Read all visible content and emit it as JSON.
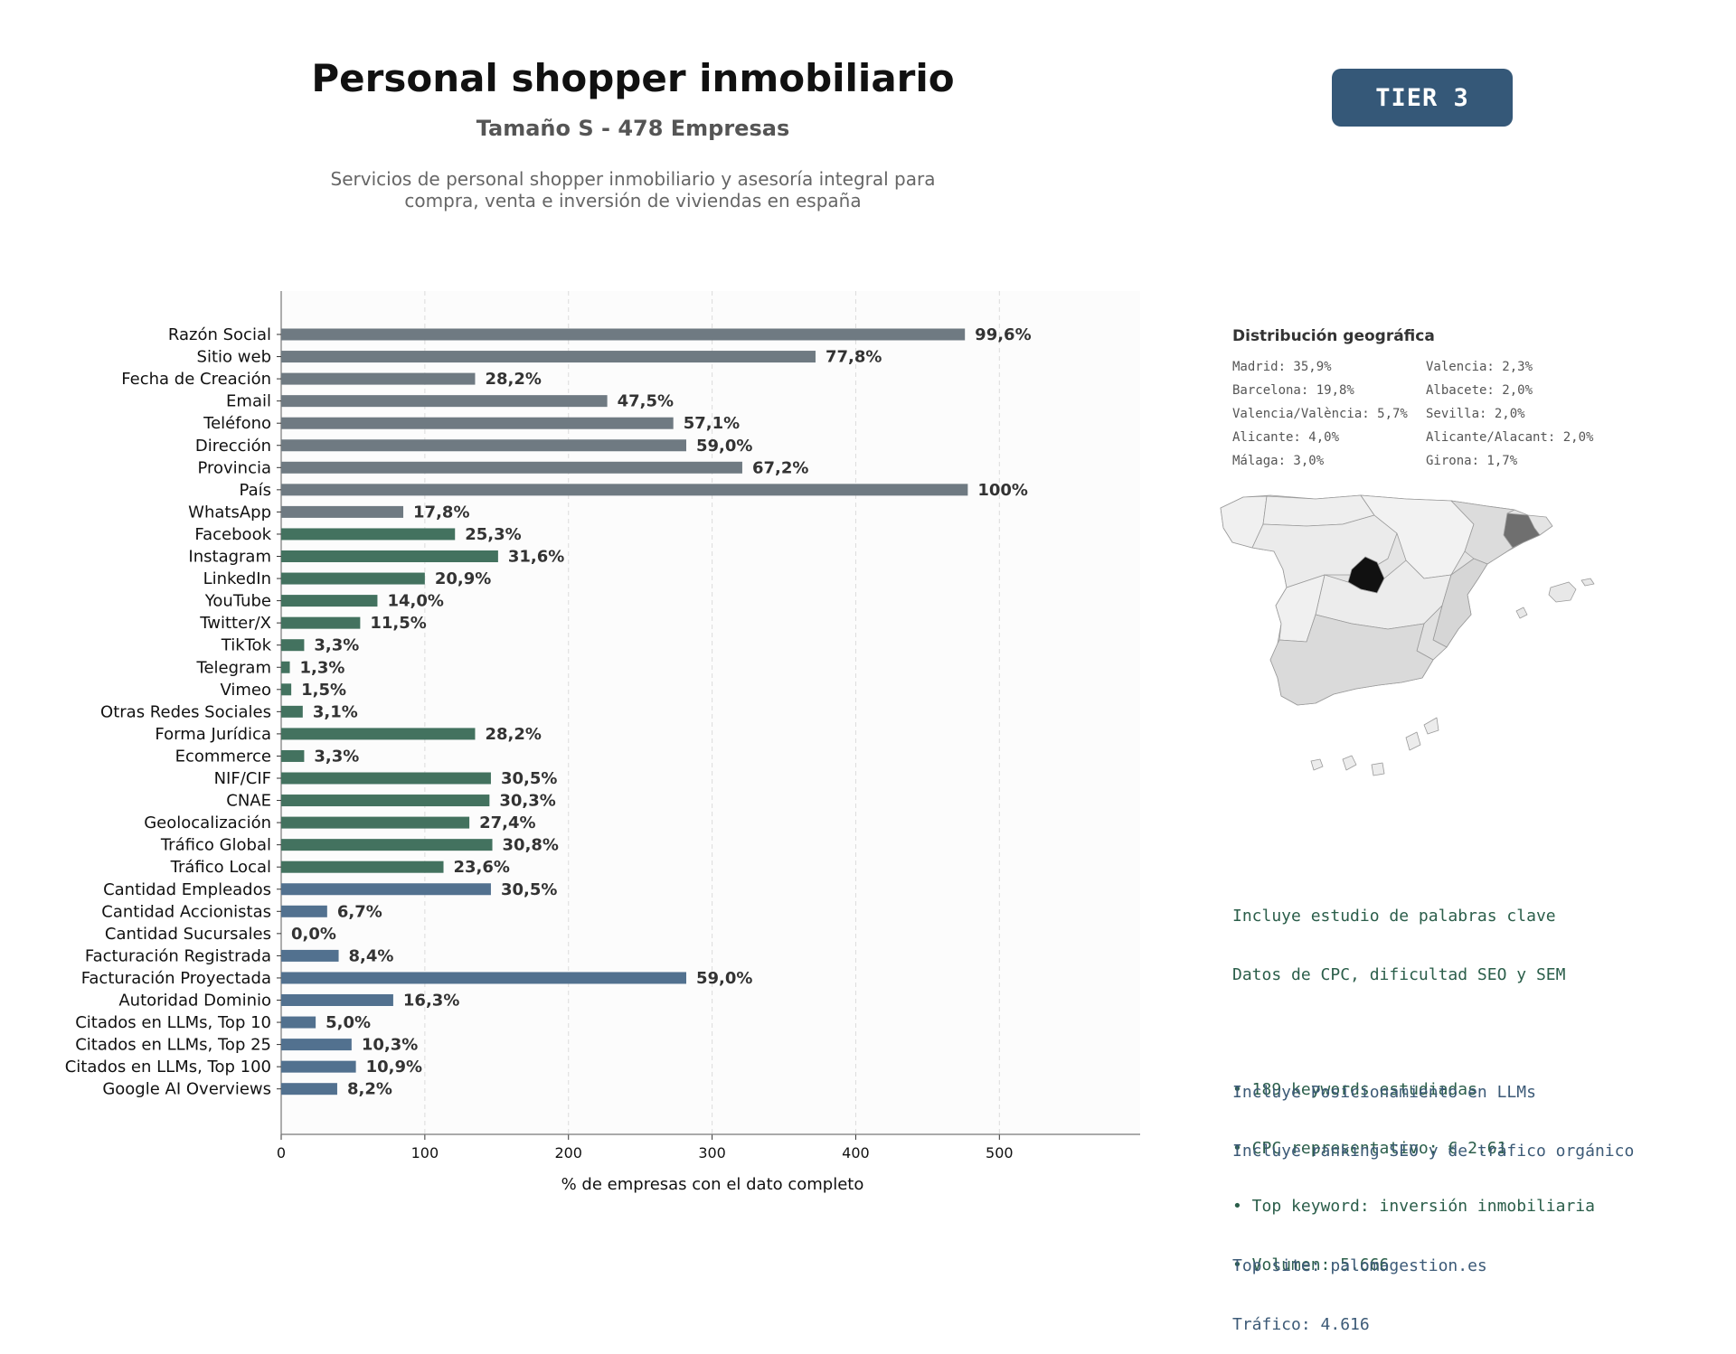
{
  "header": {
    "title": "Personal shopper inmobiliario",
    "subtitle": "Tamaño S - 478 Empresas",
    "description_line1": "Servicios de personal shopper inmobiliario y asesoría integral para",
    "description_line2": "compra, venta e inversión de viviendas en españa",
    "tier_badge": "TIER 3"
  },
  "colors": {
    "group_basic": "#6f7a82",
    "group_social": "#43725f",
    "group_business": "#52718f",
    "badge": "#355878"
  },
  "chart_data": {
    "type": "bar",
    "orientation": "horizontal",
    "xlabel": "% de empresas con el dato completo",
    "xlim": [
      0,
      598
    ],
    "xticks": [
      0,
      100,
      200,
      300,
      400,
      500
    ],
    "grid": "vertical dashed",
    "categories": [
      "Razón Social",
      "Sitio web",
      "Fecha de Creación",
      "Email",
      "Teléfono",
      "Dirección",
      "Provincia",
      "País",
      "WhatsApp",
      "Facebook",
      "Instagram",
      "LinkedIn",
      "YouTube",
      "Twitter/X",
      "TikTok",
      "Telegram",
      "Vimeo",
      "Otras Redes Sociales",
      "Forma Jurídica",
      "Ecommerce",
      "NIF/CIF",
      "CNAE",
      "Geolocalización",
      "Tráfico Global",
      "Tráfico Local",
      "Cantidad Empleados",
      "Cantidad Accionistas",
      "Cantidad Sucursales",
      "Facturación Registrada",
      "Facturación Proyectada",
      "Autoridad Dominio",
      "Citados en LLMs, Top 10",
      "Citados en LLMs, Top 25",
      "Citados en LLMs, Top 100",
      "Google AI Overviews"
    ],
    "values": [
      476,
      372,
      135,
      227,
      273,
      282,
      321,
      478,
      85,
      121,
      151,
      100,
      67,
      55,
      16,
      6,
      7,
      15,
      135,
      16,
      146,
      145,
      131,
      147,
      113,
      146,
      32,
      0,
      40,
      282,
      78,
      24,
      49,
      52,
      39
    ],
    "value_labels": [
      "99,6%",
      "77,8%",
      "28,2%",
      "47,5%",
      "57,1%",
      "59,0%",
      "67,2%",
      "100%",
      "17,8%",
      "25,3%",
      "31,6%",
      "20,9%",
      "14,0%",
      "11,5%",
      "3,3%",
      "1,3%",
      "1,5%",
      "3,1%",
      "28,2%",
      "3,3%",
      "30,5%",
      "30,3%",
      "27,4%",
      "30,8%",
      "23,6%",
      "30,5%",
      "6,7%",
      "0,0%",
      "8,4%",
      "59,0%",
      "16,3%",
      "5,0%",
      "10,3%",
      "10,9%",
      "8,2%"
    ],
    "groups": [
      "basic",
      "basic",
      "basic",
      "basic",
      "basic",
      "basic",
      "basic",
      "basic",
      "basic",
      "social",
      "social",
      "social",
      "social",
      "social",
      "social",
      "social",
      "social",
      "social",
      "social",
      "social",
      "social",
      "social",
      "social",
      "social",
      "social",
      "business",
      "business",
      "business",
      "business",
      "business",
      "business",
      "business",
      "business",
      "business",
      "business"
    ]
  },
  "geo": {
    "title": "Distribución geográfica",
    "items": [
      "Madrid: 35,9%",
      "Barcelona: 19,8%",
      "Valencia/València: 5,7%",
      "Alicante: 4,0%",
      "Málaga: 3,0%",
      "Valencia: 2,3%",
      "Albacete: 2,0%",
      "Sevilla: 2,0%",
      "Alicante/Alacant: 2,0%",
      "Girona: 1,7%"
    ]
  },
  "keywords": {
    "line1": "Incluye estudio de palabras clave",
    "line2": "Datos de CPC, dificultad SEO y SEM",
    "bullet1": "• 189 keywords estudiadas",
    "bullet2": "• CPC representativo: € 2.61",
    "bullet3": "• Top keyword: inversión inmobiliaria",
    "bullet4": "• Volumen: 5.666"
  },
  "llm": {
    "line1": "Incluye Posicionamiento en LLMs",
    "line2": "Incluye ranking SEO y de tráfico orgánico",
    "top_site": "Top site: palomagestion.es",
    "traffic": "Tráfico: 4.616"
  }
}
